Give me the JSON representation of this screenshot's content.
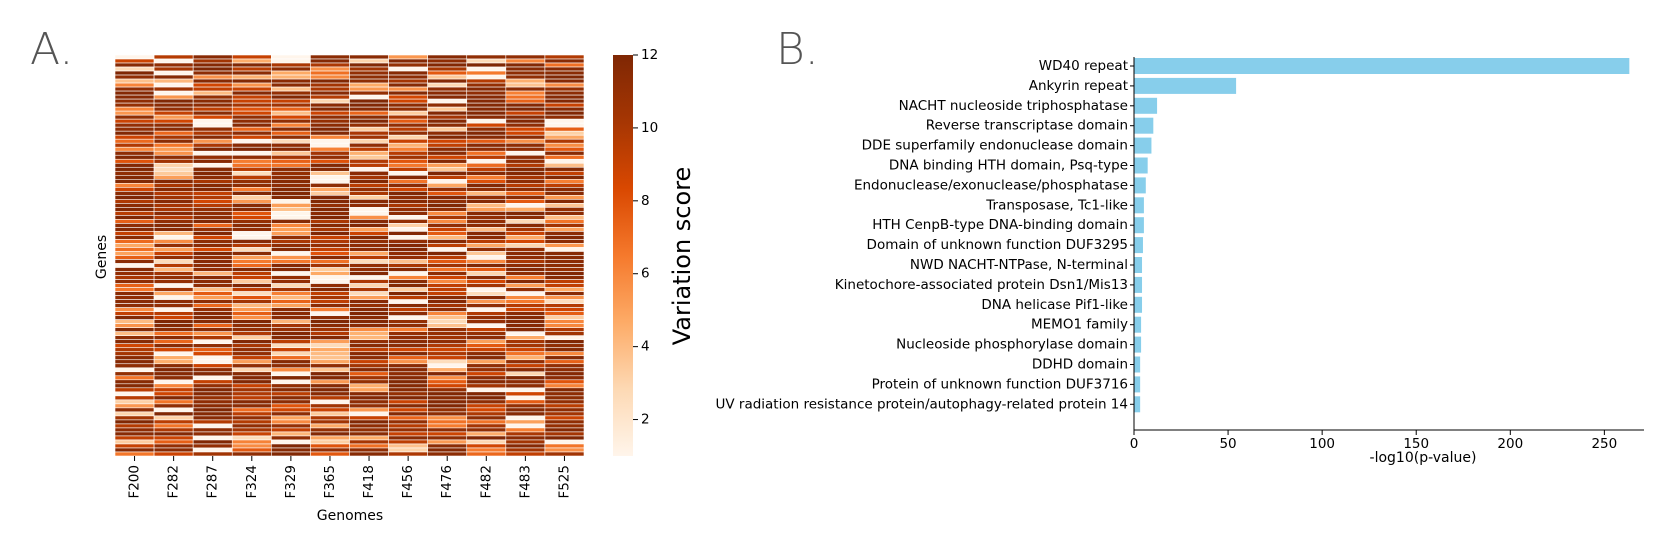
{
  "panel_a": {
    "letter": "A.",
    "chart_data": {
      "type": "heatmap",
      "title": "",
      "xlabel": "Genomes",
      "ylabel": "Genes",
      "columns": [
        "F200",
        "F282",
        "F287",
        "F324",
        "F329",
        "F365",
        "F418",
        "F456",
        "F476",
        "F482",
        "F483",
        "F525"
      ],
      "row_count": 100,
      "colorbar": {
        "label": "Variation score",
        "ticks": [
          2,
          4,
          6,
          8,
          10,
          12
        ],
        "range": [
          1,
          12
        ],
        "colormap": [
          "#fff5eb",
          "#fdd9b4",
          "#fdab67",
          "#f5792c",
          "#d94801",
          "#a63603",
          "#7f2704"
        ]
      }
    }
  },
  "panel_b": {
    "letter": "B.",
    "chart_data": {
      "type": "bar",
      "orientation": "horizontal",
      "title": "",
      "xlabel": "-log10(p-value)",
      "ylabel": "",
      "xlim": [
        0,
        270
      ],
      "xticks": [
        0,
        50,
        100,
        150,
        200,
        250
      ],
      "color": "#87ceeb",
      "categories": [
        "WD40 repeat",
        "Ankyrin repeat",
        "NACHT nucleoside triphosphatase",
        "Reverse transcriptase domain",
        "DDE superfamily endonuclease domain",
        "DNA binding HTH domain, Psq-type",
        "Endonuclease/exonuclease/phosphatase",
        "Transposase, Tc1-like",
        "HTH CenpB-type DNA-binding domain",
        "Domain of unknown function DUF3295",
        "NWD NACHT-NTPase, N-terminal",
        "Kinetochore-associated protein Dsn1/Mis13",
        "DNA helicase Pif1-like",
        "MEMO1 family",
        "Nucleoside phosphorylase domain",
        "DDHD domain",
        "Protein of unknown function DUF3716",
        "UV radiation resistance protein/autophagy-related protein 14"
      ],
      "values": [
        263,
        54,
        12,
        10,
        9,
        7,
        6,
        5,
        5,
        4.5,
        4,
        4,
        4,
        3.5,
        3.5,
        3,
        3,
        3
      ]
    }
  }
}
